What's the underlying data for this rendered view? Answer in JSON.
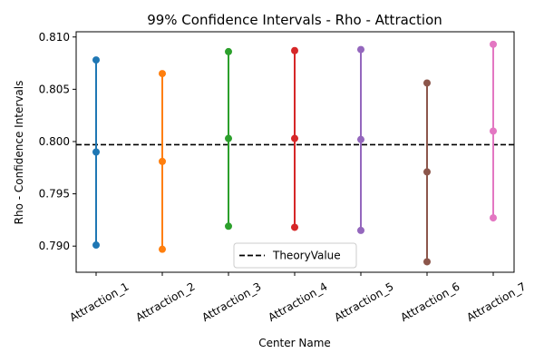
{
  "chart_data": {
    "type": "errorbar",
    "title": "99% Confidence Intervals - Rho - Attraction",
    "xlabel": "Center Name",
    "ylabel": "Rho - Confidence Intervals",
    "categories": [
      "Attraction_1",
      "Attraction_2",
      "Attraction_3",
      "Attraction_4",
      "Attraction_5",
      "Attraction_6",
      "Attraction_7"
    ],
    "intervals": [
      {
        "category": "Attraction_1",
        "lower": 0.7901,
        "mean": 0.799,
        "upper": 0.8078,
        "color": "#1f77b4"
      },
      {
        "category": "Attraction_2",
        "lower": 0.7897,
        "mean": 0.7981,
        "upper": 0.8065,
        "color": "#ff7f0e"
      },
      {
        "category": "Attraction_3",
        "lower": 0.7919,
        "mean": 0.8003,
        "upper": 0.8086,
        "color": "#2ca02c"
      },
      {
        "category": "Attraction_4",
        "lower": 0.7918,
        "mean": 0.8003,
        "upper": 0.8087,
        "color": "#d62728"
      },
      {
        "category": "Attraction_5",
        "lower": 0.7915,
        "mean": 0.8002,
        "upper": 0.8088,
        "color": "#9467bd"
      },
      {
        "category": "Attraction_6",
        "lower": 0.7885,
        "mean": 0.7971,
        "upper": 0.8056,
        "color": "#8c564b"
      },
      {
        "category": "Attraction_7",
        "lower": 0.7927,
        "mean": 0.801,
        "upper": 0.8093,
        "color": "#e377c2"
      }
    ],
    "reference_line": {
      "name": "TheoryValue",
      "value": 0.7997,
      "style": "dashed",
      "color": "#000000"
    },
    "yticks": [
      0.79,
      0.795,
      0.8,
      0.805,
      0.81
    ],
    "ytick_labels": [
      "0.790",
      "0.795",
      "0.800",
      "0.805",
      "0.810"
    ],
    "ylim": [
      0.7875,
      0.8105
    ],
    "xtick_rotation_deg": 30,
    "legend": {
      "placement": "bottom-center",
      "entries": [
        "TheoryValue"
      ]
    },
    "grid": false
  }
}
